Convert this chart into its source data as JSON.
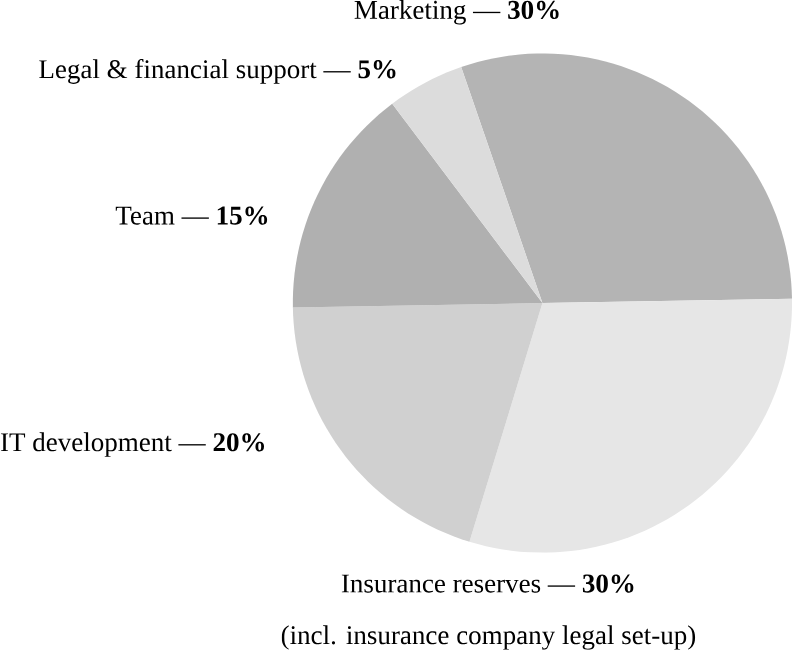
{
  "chart_data": {
    "type": "pie",
    "categories": [
      "Marketing — **30%**",
      "Insurance reserves — **30%**",
      "IT development — **20%**",
      "Team — **15%**",
      "Legal & financial support — **5%**"
    ],
    "values": [
      30,
      30,
      20,
      15,
      5
    ],
    "colors": [
      "#b4b4b4",
      "#e6e6e6",
      "#d0d0d0",
      "#b0b0b0",
      "#dcdcdc"
    ],
    "annotations": [
      "(incl. insurance company legal set-up)"
    ]
  }
}
